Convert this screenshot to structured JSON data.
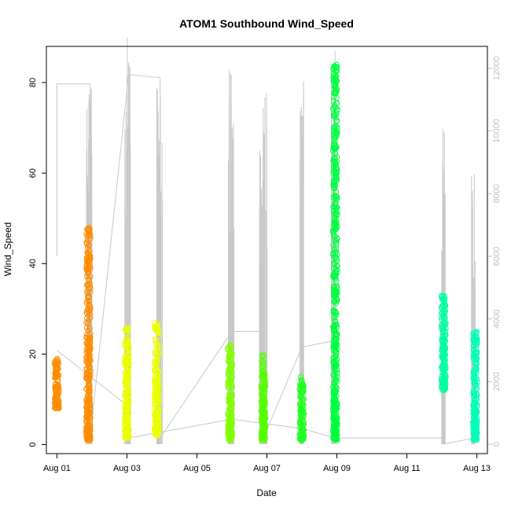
{
  "chart_data": {
    "type": "scatter",
    "title": "ATOM1 Southbound Wind_Speed",
    "xlabel": "Date",
    "ylabel": "Wind_Speed",
    "x_ticks": [
      "Aug 01",
      "Aug 03",
      "Aug 05",
      "Aug 07",
      "Aug 09",
      "Aug 11",
      "Aug 13"
    ],
    "y_ticks": [
      "0",
      "20",
      "40",
      "60",
      "80"
    ],
    "y_right_ticks": [
      "0",
      "2000",
      "4000",
      "6000",
      "8000",
      "10000",
      "12000"
    ],
    "xlim_days": [
      0.7,
      13.3
    ],
    "ylim": [
      -2,
      88
    ],
    "ylim_right": [
      -300,
      12700
    ],
    "clusters": [
      {
        "day": 1.0,
        "ymin": 8.0,
        "ymax": 19.0,
        "color": "#FF8C00"
      },
      {
        "day": 1.9,
        "ymin": 1.0,
        "ymax": 48.0,
        "color": "#FF8C00"
      },
      {
        "day": 3.0,
        "ymin": 1.5,
        "ymax": 26.0,
        "color": "#EAFF00"
      },
      {
        "day": 3.85,
        "ymin": 2.0,
        "ymax": 27.0,
        "color": "#EAFF00"
      },
      {
        "day": 5.95,
        "ymin": 1.0,
        "ymax": 22.0,
        "color": "#7FFF00"
      },
      {
        "day": 6.9,
        "ymin": 1.0,
        "ymax": 20.0,
        "color": "#55FF00"
      },
      {
        "day": 8.0,
        "ymin": 1.0,
        "ymax": 15.0,
        "color": "#22FF22"
      },
      {
        "day": 8.95,
        "ymin": 1.0,
        "ymax": 84.0,
        "color": "#00FF40"
      },
      {
        "day": 12.05,
        "ymin": 12.0,
        "ymax": 33.0,
        "color": "#00FFA0"
      },
      {
        "day": 12.95,
        "ymin": 1.0,
        "ymax": 25.0,
        "color": "#00FFB8"
      }
    ],
    "spikes": [
      {
        "day": 1.9,
        "top": 11500
      },
      {
        "day": 1.95,
        "top": 11400
      },
      {
        "day": 3.0,
        "top": 12200
      },
      {
        "day": 3.05,
        "top": 13000
      },
      {
        "day": 3.9,
        "top": 11400
      },
      {
        "day": 3.95,
        "top": 11100
      },
      {
        "day": 5.95,
        "top": 12000
      },
      {
        "day": 6.0,
        "top": 12000
      },
      {
        "day": 6.85,
        "top": 9800
      },
      {
        "day": 6.95,
        "top": 11300
      },
      {
        "day": 8.0,
        "top": 11600
      },
      {
        "day": 8.9,
        "top": 13100
      },
      {
        "day": 12.05,
        "top": 10200
      },
      {
        "day": 12.9,
        "top": 9000
      }
    ],
    "gray_trace": [
      [
        1.0,
        11500
      ],
      [
        1.0,
        6000
      ],
      [
        1.0,
        11500
      ],
      [
        1.95,
        11500
      ],
      [
        1.95,
        200
      ],
      [
        3.05,
        11800
      ],
      [
        3.05,
        200
      ],
      [
        3.05,
        11800
      ],
      [
        3.95,
        11700
      ],
      [
        3.95,
        200
      ],
      [
        6.0,
        3600
      ],
      [
        6.9,
        3600
      ],
      [
        6.9,
        200
      ],
      [
        8.0,
        3100
      ],
      [
        8.9,
        3300
      ],
      [
        8.9,
        200
      ],
      [
        12.05,
        200
      ],
      [
        12.05,
        5
      ],
      [
        12.95,
        200
      ],
      [
        12.95,
        900
      ]
    ],
    "gray_decline": [
      [
        1.0,
        3000
      ],
      [
        3.05,
        1200
      ],
      [
        3.05,
        200
      ],
      [
        6.0,
        800
      ],
      [
        8.0,
        500
      ],
      [
        8.95,
        200
      ]
    ],
    "grid": false,
    "legend": "none"
  }
}
